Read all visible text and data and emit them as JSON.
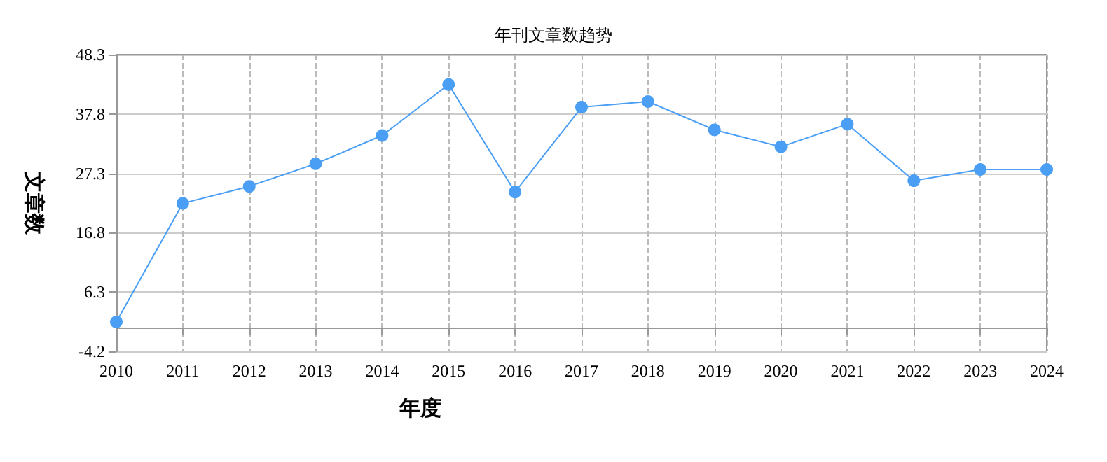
{
  "chart_data": {
    "type": "line",
    "title": "年刊文章数趋势",
    "xlabel": "年度",
    "ylabel": "文章数",
    "categories": [
      "2010",
      "2011",
      "2012",
      "2013",
      "2014",
      "2015",
      "2016",
      "2017",
      "2018",
      "2019",
      "2020",
      "2021",
      "2022",
      "2023",
      "2024"
    ],
    "series": [
      {
        "color": "#4a9ff5",
        "values": [
          1,
          22,
          25,
          29,
          34,
          43,
          24,
          39,
          40,
          35,
          32,
          36,
          26,
          28,
          28
        ]
      }
    ],
    "ylim": [
      -4.2,
      48.3
    ],
    "yticks": [
      -4.2,
      6.3,
      16.8,
      27.3,
      37.8,
      48.3
    ],
    "grid": true,
    "marker": "circle",
    "line_style": "solid"
  }
}
